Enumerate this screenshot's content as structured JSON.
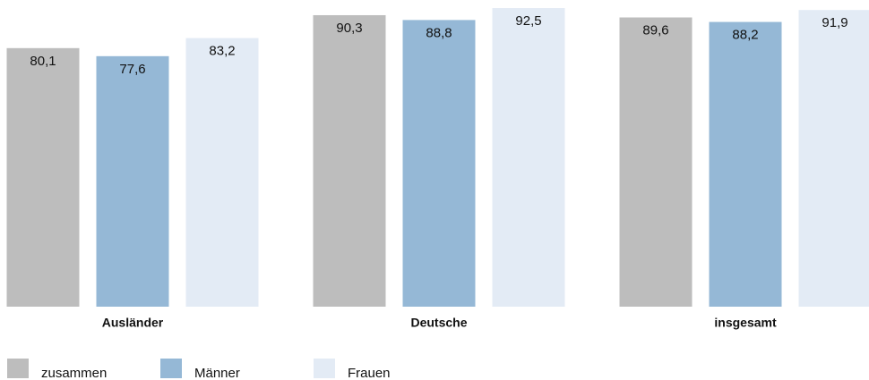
{
  "chart_data": {
    "type": "bar",
    "categories": [
      "Ausländer",
      "Deutsche",
      "insgesamt"
    ],
    "series": [
      {
        "name": "zusammen",
        "color": "#bdbdbd",
        "values": [
          80.1,
          90.3,
          89.6
        ],
        "value_labels": [
          "80,1",
          "90,3",
          "89,6"
        ]
      },
      {
        "name": "Männer",
        "color": "#95b8d6",
        "values": [
          77.6,
          88.8,
          88.2
        ],
        "value_labels": [
          "77,6",
          "88,8",
          "88,2"
        ]
      },
      {
        "name": "Frauen",
        "color": "#e3ebf5",
        "values": [
          83.2,
          92.5,
          91.9
        ],
        "value_labels": [
          "83,2",
          "92,5",
          "91,9"
        ]
      }
    ],
    "ylim": [
      0,
      95
    ]
  }
}
